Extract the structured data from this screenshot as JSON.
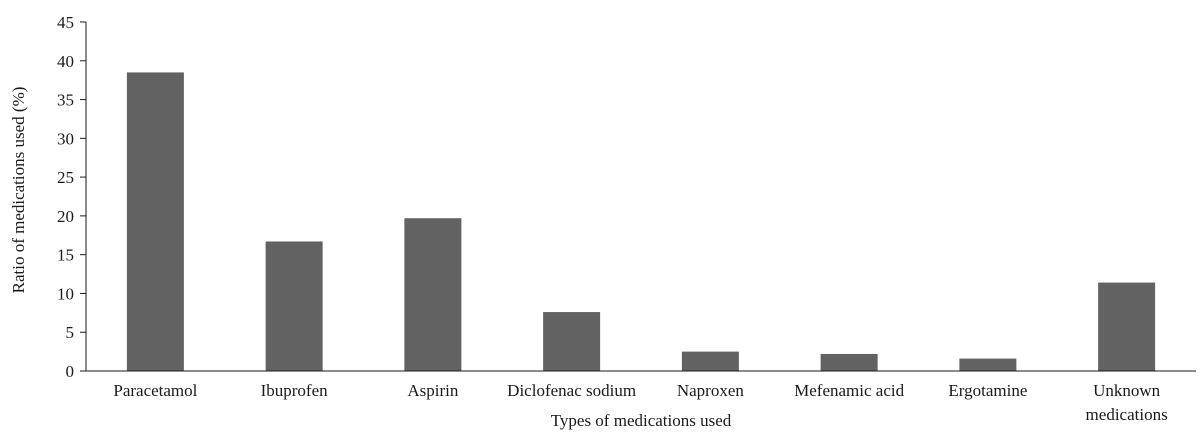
{
  "chart_data": {
    "type": "bar",
    "title": "",
    "xlabel": "Types of medications used",
    "ylabel": "Ratio of medications used (%)",
    "ylim": [
      0,
      45
    ],
    "yticks": [
      0,
      5,
      10,
      15,
      20,
      25,
      30,
      35,
      40,
      45
    ],
    "grid": false,
    "legend": "none",
    "categories": [
      [
        "Paracetamol"
      ],
      [
        "Ibuprofen"
      ],
      [
        "Aspirin"
      ],
      [
        "Diclofenac sodium"
      ],
      [
        "Naproxen"
      ],
      [
        "Mefenamic acid"
      ],
      [
        "Ergotamine"
      ],
      [
        "Unknown",
        "medications"
      ]
    ],
    "values": [
      38.5,
      16.7,
      19.7,
      7.6,
      2.5,
      2.2,
      1.6,
      11.4
    ],
    "bar_color": "#626262",
    "axis_color": "#1a1a1a"
  }
}
